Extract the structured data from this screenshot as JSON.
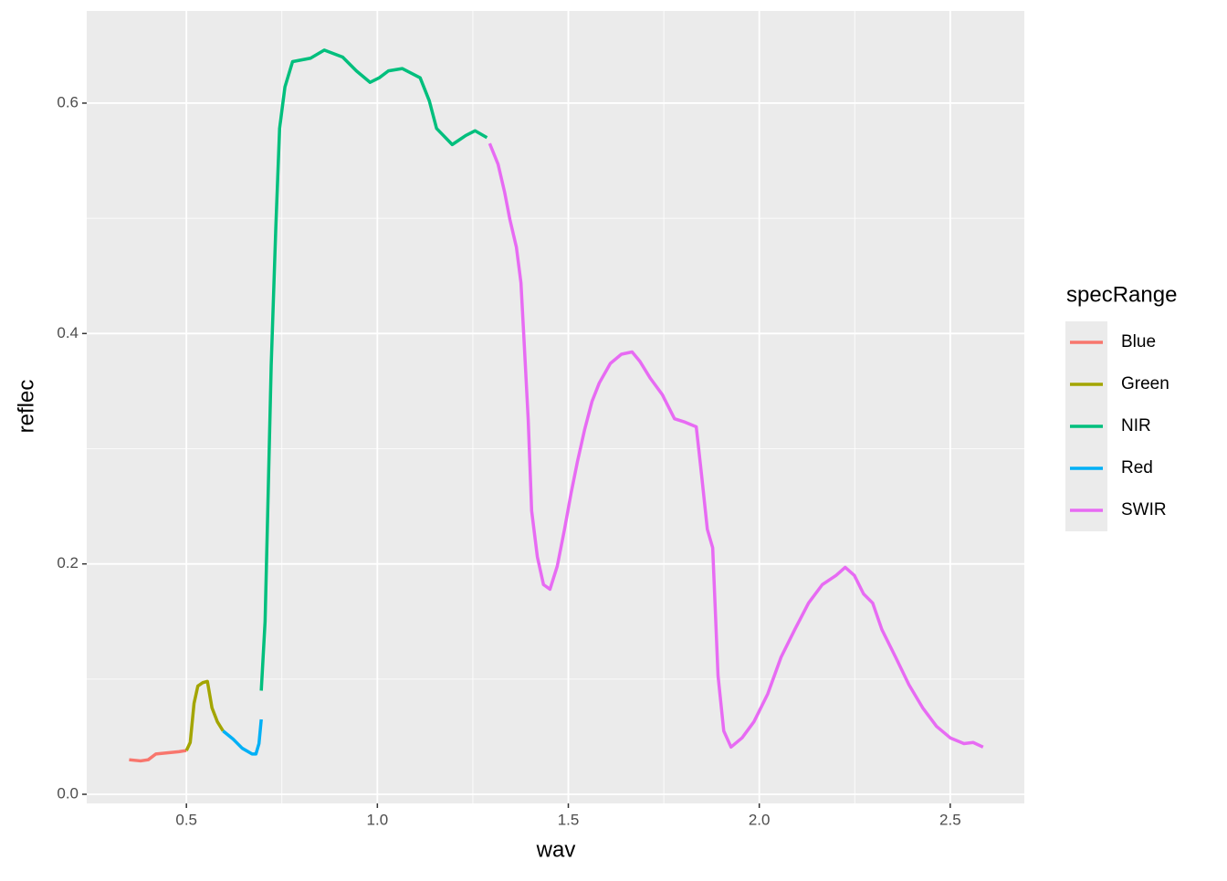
{
  "chart_data": {
    "type": "line",
    "xlabel": "wav",
    "ylabel": "reflec",
    "legend_title": "specRange",
    "legend_position": "right",
    "grid": true,
    "xlim": [
      0.239,
      2.694
    ],
    "ylim": [
      -0.0079,
      0.68
    ],
    "xticks": [
      0.5,
      {
        "value": 1,
        "label": "1.0"
      },
      1.5,
      {
        "value": 2,
        "label": "2.0"
      },
      2.5
    ],
    "yticks": [
      {
        "value": 0,
        "label": "0.0"
      },
      0.2,
      0.4,
      0.6
    ],
    "series": [
      {
        "name": "Blue",
        "color": "#F8766D",
        "x": [
          0.35,
          0.38,
          0.4,
          0.42,
          0.45,
          0.48,
          0.5
        ],
        "values": [
          0.03,
          0.029,
          0.03,
          0.035,
          0.036,
          0.037,
          0.038
        ]
      },
      {
        "name": "Green",
        "color": "#A3A500",
        "x": [
          0.5,
          0.51,
          0.52,
          0.53,
          0.543,
          0.555,
          0.567,
          0.581,
          0.596
        ],
        "values": [
          0.038,
          0.045,
          0.079,
          0.094,
          0.097,
          0.098,
          0.075,
          0.063,
          0.055
        ]
      },
      {
        "name": "NIR",
        "color": "#00BF7D",
        "x": [
          0.696,
          0.706,
          0.713,
          0.722,
          0.734,
          0.744,
          0.758,
          0.778,
          0.825,
          0.861,
          0.909,
          0.945,
          0.981,
          1.005,
          1.029,
          1.065,
          1.112,
          1.136,
          1.155,
          1.196,
          1.232,
          1.256,
          1.287
        ],
        "values": [
          0.09,
          0.15,
          0.246,
          0.372,
          0.491,
          0.578,
          0.614,
          0.636,
          0.639,
          0.646,
          0.64,
          0.628,
          0.618,
          0.622,
          0.628,
          0.63,
          0.622,
          0.602,
          0.578,
          0.564,
          0.572,
          0.576,
          0.57
        ]
      },
      {
        "name": "Red",
        "color": "#00B0F6",
        "x": [
          0.596,
          0.622,
          0.646,
          0.672,
          0.682,
          0.69,
          0.696
        ],
        "values": [
          0.055,
          0.048,
          0.04,
          0.035,
          0.035,
          0.044,
          0.065
        ]
      },
      {
        "name": "SWIR",
        "color": "#E76BF3",
        "x": [
          1.294,
          1.316,
          1.333,
          1.347,
          1.364,
          1.376,
          1.385,
          1.395,
          1.404,
          1.419,
          1.435,
          1.452,
          1.471,
          1.49,
          1.507,
          1.524,
          1.543,
          1.562,
          1.581,
          1.61,
          1.639,
          1.667,
          1.687,
          1.715,
          1.746,
          1.778,
          1.806,
          1.835,
          1.849,
          1.864,
          1.878,
          1.892,
          1.907,
          1.926,
          1.955,
          1.986,
          2.022,
          2.057,
          2.093,
          2.129,
          2.165,
          2.201,
          2.225,
          2.249,
          2.273,
          2.297,
          2.321,
          2.357,
          2.392,
          2.428,
          2.464,
          2.5,
          2.536,
          2.56,
          2.586
        ],
        "values": [
          0.565,
          0.547,
          0.523,
          0.499,
          0.475,
          0.444,
          0.388,
          0.325,
          0.246,
          0.206,
          0.182,
          0.178,
          0.198,
          0.23,
          0.261,
          0.289,
          0.317,
          0.341,
          0.357,
          0.374,
          0.382,
          0.384,
          0.376,
          0.361,
          0.347,
          0.326,
          0.323,
          0.319,
          0.277,
          0.23,
          0.214,
          0.103,
          0.055,
          0.041,
          0.049,
          0.063,
          0.087,
          0.119,
          0.143,
          0.166,
          0.182,
          0.19,
          0.197,
          0.19,
          0.174,
          0.166,
          0.143,
          0.119,
          0.095,
          0.075,
          0.059,
          0.049,
          0.044,
          0.045,
          0.041
        ]
      }
    ]
  }
}
